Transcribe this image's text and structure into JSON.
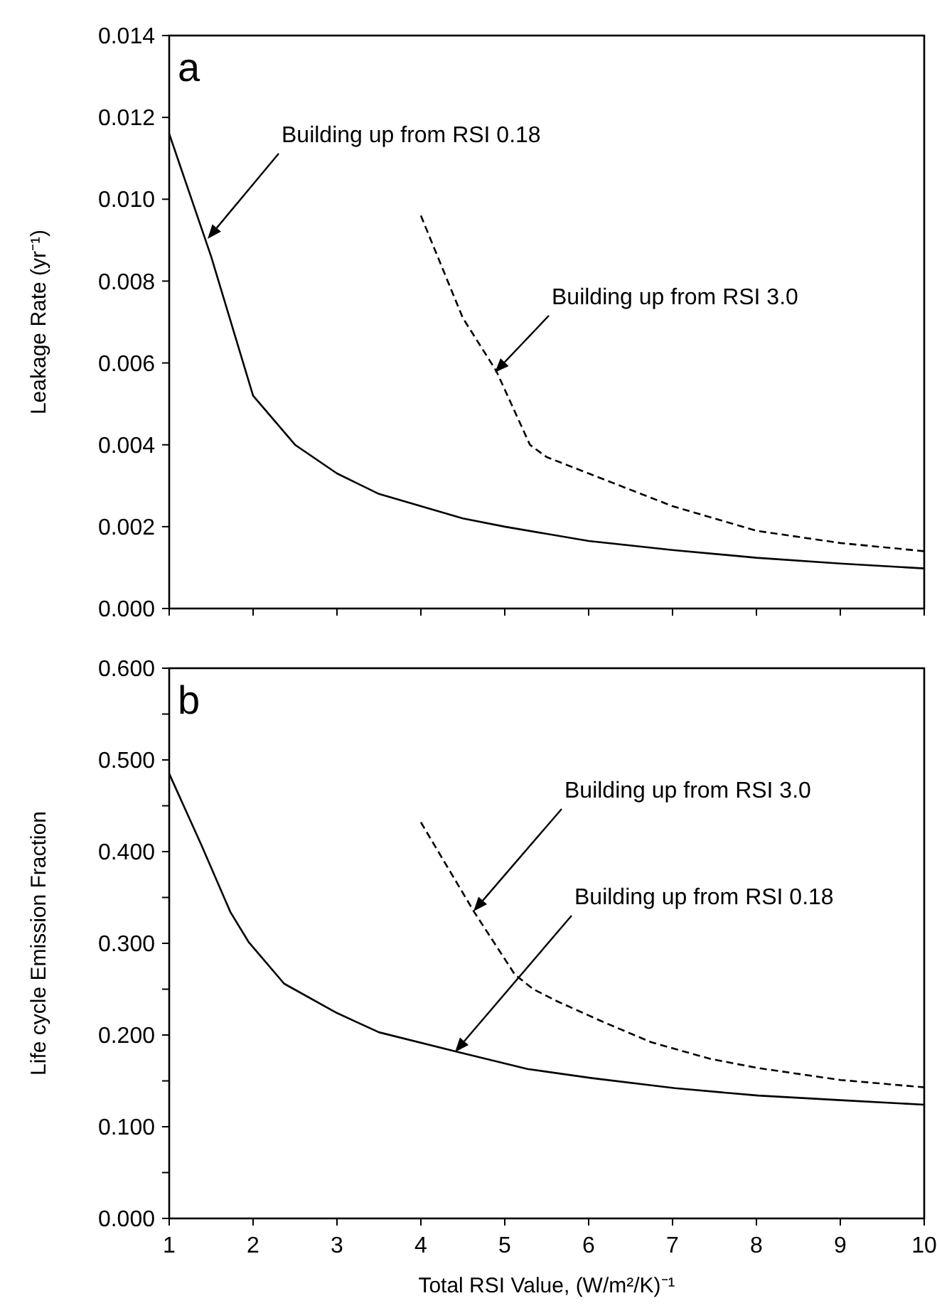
{
  "chart_data": [
    {
      "type": "line",
      "title": "a",
      "ylabel": "Leakage Rate (yr⁻¹)",
      "xlim": [
        1,
        10
      ],
      "xticks": [
        1,
        2,
        3,
        4,
        5,
        6,
        7,
        8,
        9,
        10
      ],
      "ylim": [
        0,
        0.014
      ],
      "yticks": [
        {
          "value": 0,
          "label": "0.000"
        },
        {
          "value": 0.002,
          "label": "0.002"
        },
        {
          "value": 0.004,
          "label": "0.004"
        },
        {
          "value": 0.006,
          "label": "0.006"
        },
        {
          "value": 0.008,
          "label": "0.008"
        },
        {
          "value": 0.01,
          "label": "0.010"
        },
        {
          "value": 0.012,
          "label": "0.012"
        },
        {
          "value": 0.014,
          "label": "0.014"
        }
      ],
      "tick_labels": "y",
      "series": [
        {
          "color": "#000000",
          "line_style": "solid",
          "x": [
            1,
            1.5,
            2,
            2.5,
            3,
            3.5,
            4,
            4.5,
            5,
            6,
            7,
            8,
            9,
            10
          ],
          "values": [
            0.0116,
            0.0086,
            0.0052,
            0.004,
            0.0033,
            0.0028,
            0.0025,
            0.0022,
            0.002,
            0.00165,
            0.00143,
            0.00124,
            0.0011,
            0.00098
          ]
        },
        {
          "color": "#000000",
          "line_style": "dashed",
          "x": [
            4,
            4.5,
            4.9,
            5.3,
            5.5,
            6,
            7,
            8,
            9,
            10
          ],
          "values": [
            0.0096,
            0.0071,
            0.0058,
            0.004,
            0.0037,
            0.0033,
            0.0025,
            0.0019,
            0.0016,
            0.0014
          ]
        }
      ],
      "annotations": [
        "Building up from RSI 0.18",
        "Building up from RSI 3.0"
      ]
    },
    {
      "type": "line",
      "title": "b",
      "xlabel": "Total RSI Value, (W/m²/K)⁻¹",
      "ylabel": "Life cycle Emission Fraction",
      "xlim": [
        1,
        10
      ],
      "xticks": [
        1,
        2,
        3,
        4,
        5,
        6,
        7,
        8,
        9,
        10
      ],
      "ylim": [
        0,
        0.6
      ],
      "yticks": [
        {
          "value": 0,
          "label": "0.000"
        },
        {
          "value": 0.05,
          "label": null
        },
        {
          "value": 0.1,
          "label": "0.100"
        },
        {
          "value": 0.15,
          "label": null
        },
        {
          "value": 0.2,
          "label": "0.200"
        },
        {
          "value": 0.25,
          "label": null
        },
        {
          "value": 0.3,
          "label": "0.300"
        },
        {
          "value": 0.35,
          "label": null
        },
        {
          "value": 0.4,
          "label": "0.400"
        },
        {
          "value": 0.45,
          "label": null
        },
        {
          "value": 0.5,
          "label": "0.500"
        },
        {
          "value": 0.55,
          "label": null
        },
        {
          "value": 0.6,
          "label": "0.600"
        }
      ],
      "series": [
        {
          "color": "#000000",
          "line_style": "solid",
          "x": [
            1,
            1.38,
            1.73,
            1.95,
            2.37,
            3,
            3.5,
            4.42,
            5.27,
            6.04,
            7.03,
            8.02,
            9,
            10
          ],
          "values": [
            0.485,
            0.408,
            0.334,
            0.301,
            0.256,
            0.224,
            0.203,
            0.182,
            0.163,
            0.153,
            0.142,
            0.134,
            0.129,
            0.124
          ]
        },
        {
          "color": "#000000",
          "line_style": "dashed",
          "x": [
            4,
            4.63,
            5.12,
            5.34,
            5.62,
            6.18,
            6.75,
            7.45,
            8.02,
            9,
            10
          ],
          "values": [
            0.432,
            0.335,
            0.266,
            0.25,
            0.237,
            0.214,
            0.192,
            0.174,
            0.164,
            0.151,
            0.143
          ]
        }
      ],
      "annotations": [
        "Building up from RSI 3.0",
        "Building up from RSI 0.18"
      ]
    }
  ]
}
